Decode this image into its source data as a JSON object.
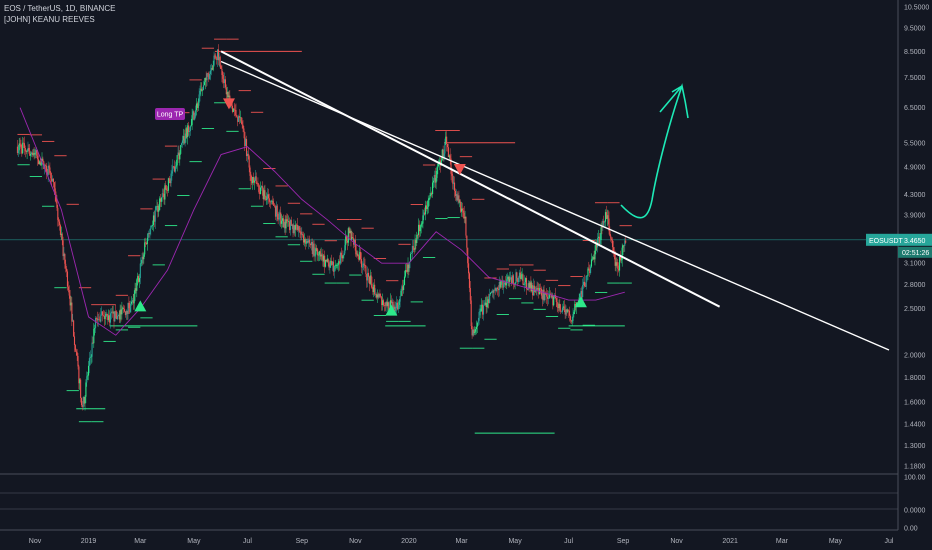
{
  "header": {
    "title": "EOS / TetherUS, 1D, BINANCE",
    "indicator": "[JOHN] KEANU REEVES"
  },
  "annotations": {
    "long_tp": "Long TP",
    "symbol_tag": "EOSUSDT",
    "price_tag": "3.4650",
    "countdown_tag": "02:51:26"
  },
  "colors": {
    "background": "#131722",
    "up": "#26a69a",
    "up_bright": "#2ee88a",
    "down": "#ef5350",
    "ma": "#9c27b0",
    "trendline": "#ffffff",
    "arrow": "#1de9b6",
    "long_tp_bg": "#9c27b0"
  },
  "chart_data": {
    "type": "line",
    "title": "EOS / TetherUS, 1D, BINANCE",
    "log_scale": true,
    "y_ticks": [
      "10.5000",
      "9.5000",
      "8.5000",
      "7.5000",
      "6.5000",
      "5.5000",
      "4.9000",
      "4.3000",
      "3.9000",
      "3.1000",
      "2.8000",
      "2.5000",
      "2.0000",
      "1.8000",
      "1.6000",
      "1.4400",
      "1.3000",
      "1.1800"
    ],
    "x_ticks": [
      "Nov",
      "2019",
      "Mar",
      "May",
      "Jul",
      "Sep",
      "Nov",
      "2020",
      "Mar",
      "May",
      "Jul",
      "Sep",
      "Nov",
      "2021",
      "Mar",
      "May",
      "Jul"
    ],
    "sub_ticks": [
      "100.00",
      "0.0000",
      "0.00"
    ],
    "series": [
      {
        "name": "EOS/USDT",
        "x": [
          "2018-10-15",
          "2018-11-01",
          "2018-11-20",
          "2018-12-10",
          "2018-12-25",
          "2019-01-10",
          "2019-02-01",
          "2019-02-20",
          "2019-03-10",
          "2019-04-01",
          "2019-04-20",
          "2019-05-10",
          "2019-05-28",
          "2019-06-10",
          "2019-06-25",
          "2019-07-05",
          "2019-07-20",
          "2019-08-10",
          "2019-08-30",
          "2019-09-20",
          "2019-10-10",
          "2019-10-25",
          "2019-11-15",
          "2019-12-01",
          "2019-12-18",
          "2020-01-05",
          "2020-01-25",
          "2020-02-12",
          "2020-02-25",
          "2020-03-05",
          "2020-03-13",
          "2020-03-25",
          "2020-04-15",
          "2020-05-05",
          "2020-05-25",
          "2020-06-15",
          "2020-07-05",
          "2020-07-25",
          "2020-08-13",
          "2020-08-25",
          "2020-09-03"
        ],
        "values": [
          5.4,
          5.2,
          4.7,
          2.7,
          1.55,
          2.4,
          2.4,
          2.55,
          3.6,
          4.5,
          5.6,
          7.0,
          8.5,
          6.7,
          6.0,
          4.7,
          4.3,
          3.8,
          3.6,
          3.2,
          3.0,
          3.6,
          2.9,
          2.6,
          2.5,
          3.3,
          4.3,
          5.5,
          4.2,
          3.9,
          2.2,
          2.5,
          2.8,
          2.9,
          2.7,
          2.6,
          2.4,
          3.0,
          3.9,
          3.0,
          3.4
        ]
      },
      {
        "name": "MA",
        "x": [
          "2018-10-15",
          "2018-12-01",
          "2019-01-01",
          "2019-02-01",
          "2019-03-01",
          "2019-04-01",
          "2019-05-01",
          "2019-06-01",
          "2019-07-01",
          "2019-08-01",
          "2019-09-01",
          "2019-10-01",
          "2019-11-01",
          "2019-12-01",
          "2020-01-01",
          "2020-02-01",
          "2020-03-01",
          "2020-04-01",
          "2020-05-01",
          "2020-06-01",
          "2020-07-01",
          "2020-08-01",
          "2020-09-03"
        ],
        "values": [
          6.5,
          4.0,
          2.4,
          2.2,
          2.5,
          3.0,
          4.0,
          5.2,
          5.4,
          4.8,
          4.2,
          3.8,
          3.4,
          3.1,
          3.1,
          3.6,
          3.3,
          2.9,
          2.8,
          2.7,
          2.6,
          2.6,
          2.7
        ]
      }
    ],
    "trendlines": [
      {
        "name": "upper",
        "x": [
          "2019-06-01",
          "2020-12-20"
        ],
        "y": [
          8.5,
          2.52
        ]
      },
      {
        "name": "lower",
        "x": [
          "2019-06-01",
          "2021-07-01"
        ],
        "y": [
          8.1,
          2.05
        ]
      }
    ],
    "signals": [
      {
        "type": "buy",
        "date": "2019-03-01",
        "price": 2.5
      },
      {
        "type": "sell",
        "date": "2019-06-10",
        "price": 6.7
      },
      {
        "type": "buy",
        "date": "2019-12-12",
        "price": 2.45
      },
      {
        "type": "sell",
        "date": "2020-02-28",
        "price": 4.9
      },
      {
        "type": "buy",
        "date": "2020-07-15",
        "price": 2.55
      }
    ],
    "last_price": 3.465
  }
}
